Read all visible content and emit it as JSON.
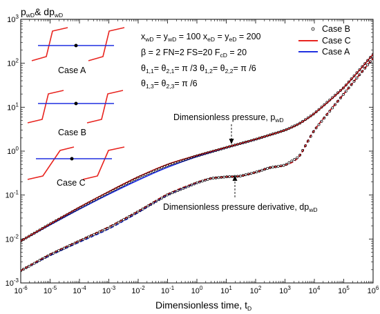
{
  "chart_data": {
    "type": "line",
    "xscale": "log",
    "yscale": "log",
    "xlim": [
      1e-06,
      1000000.0
    ],
    "ylim": [
      0.001,
      1000
    ],
    "xlabel": "Dimensionless time, t",
    "xlabel_sub": "D",
    "ylabel_parts": [
      "p",
      "wD",
      "& dp",
      "wD"
    ],
    "x_ticks": [
      {
        "base": "10",
        "exp": "-6"
      },
      {
        "base": "10",
        "exp": "-5"
      },
      {
        "base": "10",
        "exp": "-4"
      },
      {
        "base": "10",
        "exp": "-3"
      },
      {
        "base": "10",
        "exp": "-2"
      },
      {
        "base": "10",
        "exp": "-1"
      },
      {
        "base": "10",
        "exp": "0"
      },
      {
        "base": "10",
        "exp": "1"
      },
      {
        "base": "10",
        "exp": "2"
      },
      {
        "base": "10",
        "exp": "3"
      },
      {
        "base": "10",
        "exp": "4"
      },
      {
        "base": "10",
        "exp": "5"
      },
      {
        "base": "10",
        "exp": "6"
      }
    ],
    "y_ticks": [
      {
        "base": "10",
        "exp": "-3"
      },
      {
        "base": "10",
        "exp": "-2"
      },
      {
        "base": "10",
        "exp": "-1"
      },
      {
        "base": "10",
        "exp": "0"
      },
      {
        "base": "10",
        "exp": "1"
      },
      {
        "base": "10",
        "exp": "2"
      },
      {
        "base": "10",
        "exp": "3"
      }
    ],
    "legend_placement": "top-right",
    "legend": [
      {
        "label": "Case B",
        "style": "circle-markers",
        "color": "#000000"
      },
      {
        "label": "Case C",
        "style": "solid",
        "color": "#e8231e"
      },
      {
        "label": "Case A",
        "style": "solid",
        "color": "#1f2fe0"
      }
    ],
    "parameters": {
      "line1": [
        [
          "x",
          "wD"
        ],
        [
          " = y",
          "wD"
        ],
        [
          " = 100   x",
          "eD"
        ],
        [
          " = y",
          "eD"
        ],
        [
          " = 200",
          ""
        ]
      ],
      "line2": [
        [
          "β = 2    FN=2    FS=20    F",
          "cD"
        ],
        [
          " = 20",
          ""
        ]
      ],
      "line3": [
        [
          "θ",
          "1,1"
        ],
        [
          "= θ",
          "2,1"
        ],
        [
          "= π /3    θ",
          "1,2"
        ],
        [
          "= θ",
          "2,2"
        ],
        [
          "= π /6",
          ""
        ]
      ],
      "line4": [
        [
          "θ",
          "1,3"
        ],
        [
          "= θ",
          "2,3"
        ],
        [
          "= π /6",
          ""
        ]
      ]
    },
    "annotations": [
      {
        "text": "Dimensionless pressure, p",
        "sub": "wD"
      },
      {
        "text": "Dimensionless pressure derivative, dp",
        "sub": "wD"
      }
    ],
    "inset_labels": [
      "Case A",
      "Case B",
      "Case C"
    ],
    "series": [
      {
        "name": "Case A",
        "color": "#1f2fe0",
        "x": [
          1e-06,
          1e-05,
          0.0001,
          0.001,
          0.01,
          0.1,
          1,
          10,
          100,
          1000,
          3000,
          10000,
          100000,
          1000000
        ],
        "y": [
          0.009,
          0.021,
          0.048,
          0.105,
          0.22,
          0.43,
          0.75,
          1.2,
          1.85,
          3.0,
          4.2,
          7.2,
          28,
          160
        ]
      },
      {
        "name": "Case C",
        "color": "#e8231e",
        "x": [
          1e-06,
          1e-05,
          0.0001,
          0.001,
          0.01,
          0.1,
          1,
          10,
          100,
          1000,
          3000,
          10000,
          100000,
          1000000
        ],
        "y": [
          0.009,
          0.022,
          0.053,
          0.12,
          0.26,
          0.5,
          0.8,
          1.22,
          1.87,
          3.0,
          4.2,
          7.2,
          28,
          160
        ]
      },
      {
        "name": "Case B",
        "color": "#000000",
        "x": [
          1e-06,
          1e-05,
          0.0001,
          0.001,
          0.01,
          0.1,
          1,
          10,
          100,
          1000,
          3000,
          10000,
          100000,
          1000000
        ],
        "y": [
          0.009,
          0.022,
          0.051,
          0.115,
          0.25,
          0.48,
          0.78,
          1.21,
          1.86,
          3.0,
          4.2,
          7.2,
          28,
          160
        ]
      },
      {
        "name": "Case A derivative",
        "color": "#1f2fe0",
        "x": [
          1e-06,
          1e-05,
          0.0001,
          0.001,
          0.01,
          0.1,
          1,
          3,
          10,
          30,
          100,
          300,
          1000,
          3000,
          10000,
          100000,
          1000000
        ],
        "y": [
          0.0019,
          0.0042,
          0.0085,
          0.017,
          0.04,
          0.1,
          0.19,
          0.24,
          0.26,
          0.27,
          0.33,
          0.42,
          0.48,
          0.75,
          3.0,
          20,
          130
        ]
      },
      {
        "name": "Case C derivative",
        "color": "#e8231e",
        "x": [
          1e-06,
          1e-05,
          0.0001,
          0.001,
          0.01,
          0.1,
          1,
          3,
          10,
          30,
          100,
          300,
          1000,
          3000,
          10000,
          100000,
          1000000
        ],
        "y": [
          0.0019,
          0.0045,
          0.0092,
          0.019,
          0.043,
          0.105,
          0.195,
          0.24,
          0.26,
          0.27,
          0.33,
          0.42,
          0.48,
          0.75,
          3.0,
          20,
          130
        ]
      },
      {
        "name": "Case B derivative",
        "color": "#000000",
        "x": [
          1e-06,
          1e-05,
          0.0001,
          0.001,
          0.01,
          0.1,
          1,
          3,
          10,
          30,
          100,
          300,
          1000,
          3000,
          10000,
          100000,
          1000000
        ],
        "y": [
          0.0019,
          0.0044,
          0.009,
          0.018,
          0.042,
          0.102,
          0.19,
          0.24,
          0.26,
          0.27,
          0.33,
          0.42,
          0.48,
          0.75,
          3.0,
          20,
          130
        ]
      }
    ]
  }
}
